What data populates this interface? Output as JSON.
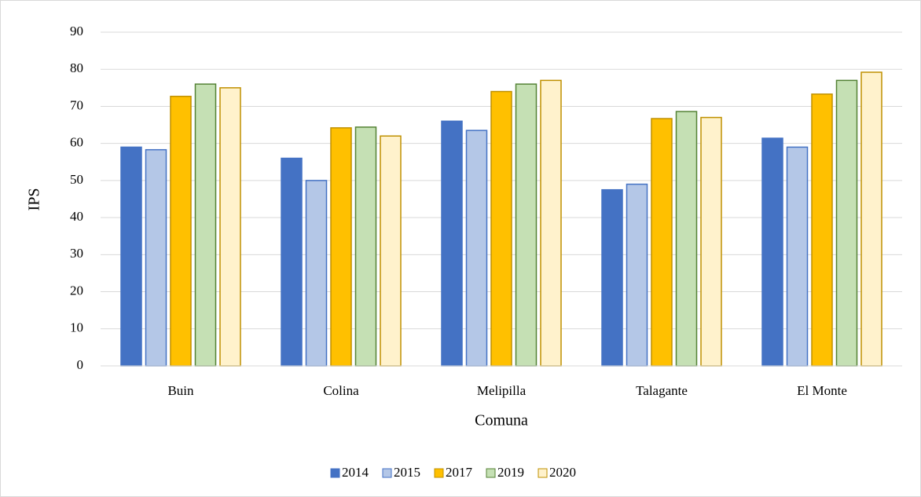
{
  "chart_data": {
    "type": "bar",
    "x_label": "Comuna",
    "y_label": "IPS",
    "categories": [
      "Buin",
      "Colina",
      "Melipilla",
      "Talagante",
      "El Monte"
    ],
    "series": [
      {
        "name": "2014",
        "color": "#4472c4",
        "edgecolor": "#4472c4",
        "values": [
          59,
          56,
          66,
          47.5,
          61.4
        ]
      },
      {
        "name": "2015",
        "color": "#b4c7e7",
        "edgecolor": "#4472c4",
        "values": [
          58.3,
          50,
          63.5,
          49,
          59
        ]
      },
      {
        "name": "2017",
        "color": "#ffc000",
        "edgecolor": "#bf9000",
        "values": [
          72.7,
          64.2,
          74,
          66.7,
          73.3
        ]
      },
      {
        "name": "2019",
        "color": "#c5e0b4",
        "edgecolor": "#548235",
        "values": [
          76,
          64.4,
          76,
          68.6,
          77
        ]
      },
      {
        "name": "2020",
        "color": "#fff2cc",
        "edgecolor": "#bf9000",
        "values": [
          75,
          62,
          77,
          67,
          79.2
        ]
      }
    ],
    "ylim": [
      0,
      90
    ],
    "yticks": [
      0,
      10,
      20,
      30,
      40,
      50,
      60,
      70,
      80,
      90
    ],
    "grid": true,
    "legend": "bottom"
  }
}
